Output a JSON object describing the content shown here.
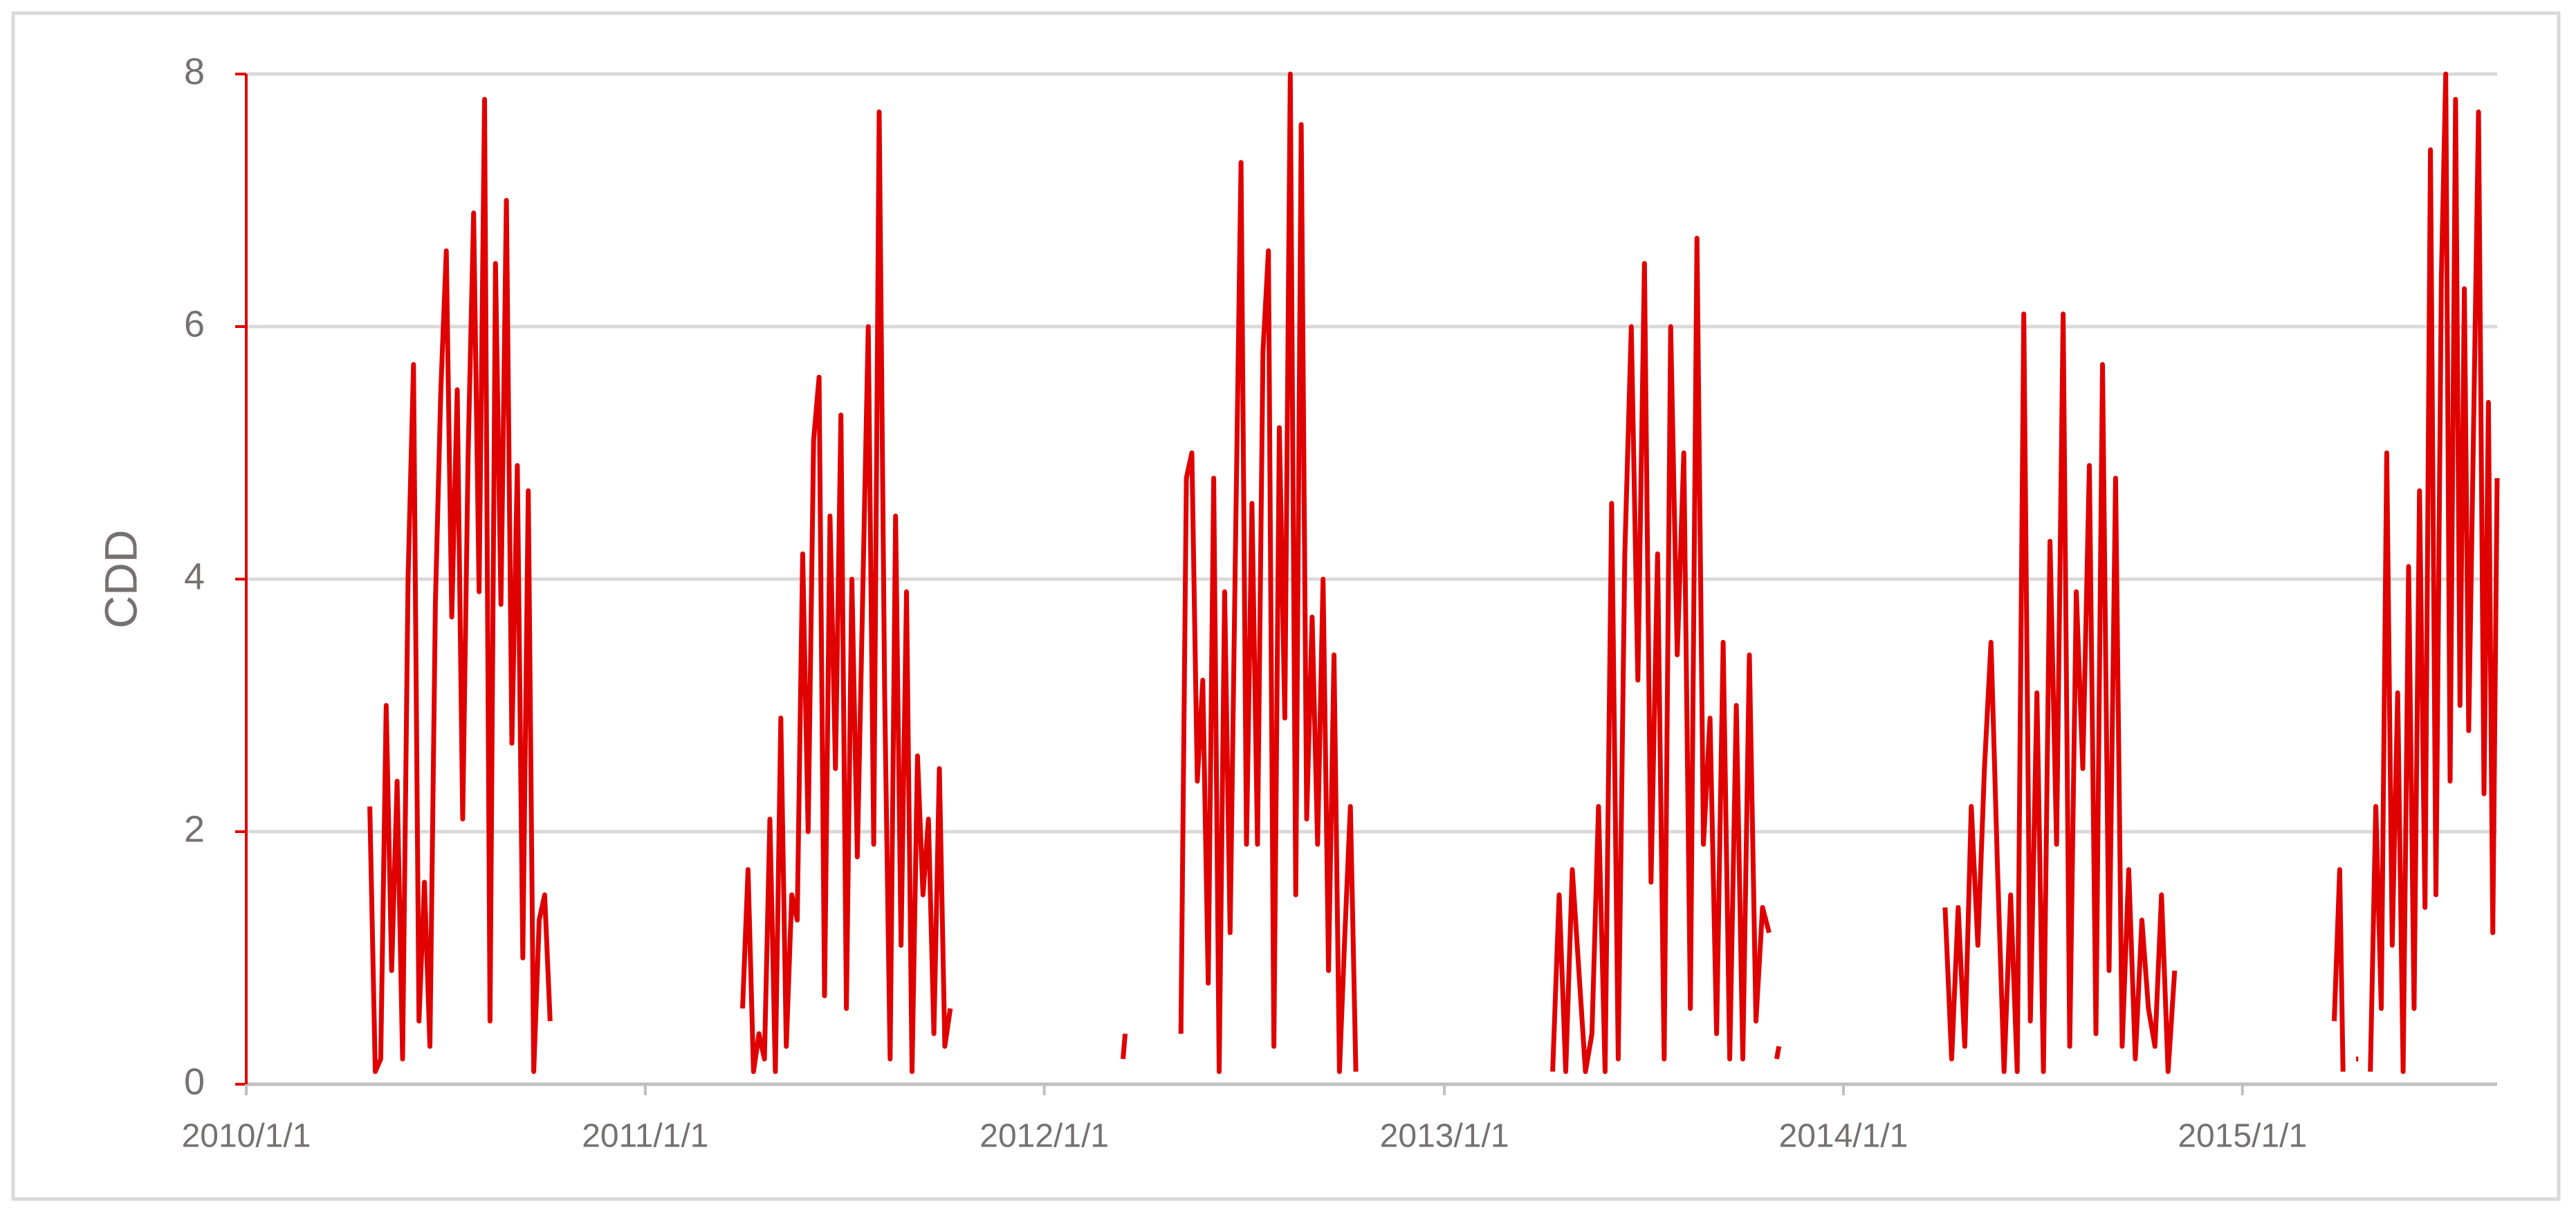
{
  "chart_data": {
    "type": "line",
    "ylabel": "CDD",
    "color": "#e00000",
    "grid": true,
    "xlim": [
      "2010/1/1",
      "2015/8/22"
    ],
    "xticks": [
      "2010/1/1",
      "2011/1/1",
      "2012/1/1",
      "2013/1/1",
      "2014/1/1",
      "2015/1/1"
    ],
    "ylim": [
      0,
      8
    ],
    "yticks": [
      0,
      2,
      4,
      6,
      8
    ],
    "x": [
      "2010/4/24",
      "2010/4/29",
      "2010/5/4",
      "2010/5/9",
      "2010/5/14",
      "2010/5/19",
      "2010/5/24",
      "2010/5/29",
      "2010/6/3",
      "2010/6/8",
      "2010/6/13",
      "2010/6/18",
      "2010/6/23",
      "2010/6/28",
      "2010/7/3",
      "2010/7/8",
      "2010/7/13",
      "2010/7/18",
      "2010/7/23",
      "2010/7/28",
      "2010/8/2",
      "2010/8/7",
      "2010/8/12",
      "2010/8/17",
      "2010/8/22",
      "2010/8/27",
      "2010/9/1",
      "2010/9/6",
      "2010/9/11",
      "2010/9/16",
      "2010/9/21",
      "2010/9/26",
      "2010/10/1",
      "2010/10/6",
      "2011/1/1",
      "2011/3/31",
      "2011/4/5",
      "2011/4/10",
      "2011/4/15",
      "2011/4/20",
      "2011/4/25",
      "2011/4/30",
      "2011/5/5",
      "2011/5/10",
      "2011/5/15",
      "2011/5/20",
      "2011/5/25",
      "2011/5/30",
      "2011/6/4",
      "2011/6/9",
      "2011/6/14",
      "2011/6/19",
      "2011/6/24",
      "2011/6/29",
      "2011/7/4",
      "2011/7/9",
      "2011/7/14",
      "2011/7/19",
      "2011/7/24",
      "2011/7/29",
      "2011/8/3",
      "2011/8/8",
      "2011/8/13",
      "2011/8/18",
      "2011/8/23",
      "2011/8/28",
      "2011/9/2",
      "2011/9/7",
      "2011/9/12",
      "2011/9/17",
      "2011/9/22",
      "2011/9/27",
      "2011/10/2",
      "2011/10/7",
      "2012/1/1",
      "2012/3/13",
      "2012/3/15",
      "2012/4/1",
      "2012/5/5",
      "2012/5/10",
      "2012/5/15",
      "2012/5/20",
      "2012/5/25",
      "2012/5/30",
      "2012/6/4",
      "2012/6/9",
      "2012/6/14",
      "2012/6/19",
      "2012/6/24",
      "2012/6/29",
      "2012/7/4",
      "2012/7/9",
      "2012/7/14",
      "2012/7/19",
      "2012/7/24",
      "2012/7/29",
      "2012/8/3",
      "2012/8/8",
      "2012/8/13",
      "2012/8/18",
      "2012/8/23",
      "2012/8/28",
      "2012/9/2",
      "2012/9/7",
      "2012/9/12",
      "2012/9/17",
      "2012/9/22",
      "2012/9/27",
      "2012/10/2",
      "2012/10/7",
      "2012/10/12",
      "2013/1/1",
      "2013/4/10",
      "2013/4/16",
      "2013/4/22",
      "2013/4/28",
      "2013/5/4",
      "2013/5/10",
      "2013/5/16",
      "2013/5/22",
      "2013/5/28",
      "2013/6/3",
      "2013/6/9",
      "2013/6/15",
      "2013/6/21",
      "2013/6/27",
      "2013/7/3",
      "2013/7/9",
      "2013/7/15",
      "2013/7/21",
      "2013/7/27",
      "2013/8/2",
      "2013/8/8",
      "2013/8/14",
      "2013/8/20",
      "2013/8/26",
      "2013/9/1",
      "2013/9/7",
      "2013/9/13",
      "2013/9/19",
      "2013/9/25",
      "2013/10/1",
      "2013/10/7",
      "2013/10/13",
      "2013/10/19",
      "2013/10/25",
      "2013/10/28",
      "2013/11/1",
      "2013/11/3",
      "2014/1/1",
      "2014/4/4",
      "2014/4/10",
      "2014/4/16",
      "2014/4/22",
      "2014/4/28",
      "2014/5/4",
      "2014/5/10",
      "2014/5/16",
      "2014/5/22",
      "2014/5/28",
      "2014/6/3",
      "2014/6/9",
      "2014/6/15",
      "2014/6/21",
      "2014/6/27",
      "2014/7/3",
      "2014/7/9",
      "2014/7/15",
      "2014/7/21",
      "2014/7/27",
      "2014/8/2",
      "2014/8/8",
      "2014/8/14",
      "2014/8/20",
      "2014/8/26",
      "2014/9/1",
      "2014/9/7",
      "2014/9/13",
      "2014/9/19",
      "2014/9/25",
      "2014/10/1",
      "2014/10/7",
      "2014/10/13",
      "2014/10/19",
      "2014/10/25",
      "2014/10/31",
      "2015/1/1",
      "2015/3/26",
      "2015/3/31",
      "2015/4/3",
      "2015/4/10",
      "2015/4/15",
      "2015/4/17",
      "2015/4/22",
      "2015/4/28",
      "2015/5/3",
      "2015/5/8",
      "2015/5/13",
      "2015/5/18",
      "2015/5/23",
      "2015/5/28",
      "2015/6/2",
      "2015/6/7",
      "2015/6/12",
      "2015/6/17",
      "2015/6/22",
      "2015/6/27",
      "2015/7/2",
      "2015/7/6",
      "2015/7/10",
      "2015/7/15",
      "2015/7/19",
      "2015/7/23",
      "2015/7/27",
      "2015/8/1",
      "2015/8/5",
      "2015/8/10",
      "2015/8/14",
      "2015/8/18",
      "2015/8/22"
    ],
    "values": [
      2.2,
      0.1,
      0.2,
      3.0,
      0.9,
      2.4,
      0.2,
      4.0,
      5.7,
      0.5,
      1.6,
      0.3,
      3.8,
      5.5,
      6.6,
      3.7,
      5.5,
      2.1,
      5.0,
      6.9,
      3.9,
      7.8,
      0.5,
      6.5,
      3.8,
      7.0,
      2.7,
      4.9,
      1.0,
      4.7,
      0.1,
      1.3,
      1.5,
      0.5,
      null,
      0.6,
      1.7,
      0.1,
      0.4,
      0.2,
      2.1,
      0.1,
      2.9,
      0.3,
      1.5,
      1.3,
      4.2,
      2.0,
      5.1,
      5.6,
      0.7,
      4.5,
      2.5,
      5.3,
      0.6,
      4.0,
      1.8,
      3.9,
      6.0,
      1.9,
      7.7,
      3.1,
      0.2,
      4.5,
      1.1,
      3.9,
      0.1,
      2.6,
      1.5,
      2.1,
      0.4,
      2.5,
      0.3,
      0.6,
      null,
      0.2,
      0.4,
      null,
      0.4,
      4.8,
      5.0,
      2.4,
      3.2,
      0.8,
      4.8,
      0.1,
      3.9,
      1.2,
      4.3,
      7.3,
      1.9,
      4.6,
      1.9,
      5.8,
      6.6,
      0.3,
      5.2,
      2.9,
      8.0,
      1.5,
      7.6,
      2.1,
      3.7,
      1.9,
      4.0,
      0.9,
      3.4,
      0.1,
      1.2,
      2.2,
      0.1,
      null,
      0.1,
      1.5,
      0.1,
      1.7,
      0.9,
      0.1,
      0.4,
      2.2,
      0.1,
      4.6,
      0.2,
      4.2,
      6.0,
      3.2,
      6.5,
      1.6,
      4.2,
      0.2,
      6.0,
      3.4,
      5.0,
      0.6,
      6.7,
      1.9,
      2.9,
      0.4,
      3.5,
      0.2,
      3.0,
      0.2,
      3.4,
      0.5,
      1.4,
      1.2,
      null,
      0.2,
      0.3,
      null,
      1.4,
      0.2,
      1.4,
      0.3,
      2.2,
      1.1,
      2.5,
      3.5,
      1.7,
      0.1,
      1.5,
      0.1,
      6.1,
      0.5,
      3.1,
      0.1,
      4.3,
      1.9,
      6.1,
      0.3,
      3.9,
      2.5,
      4.9,
      0.4,
      5.7,
      0.9,
      4.8,
      0.3,
      1.7,
      0.2,
      1.3,
      0.6,
      0.3,
      1.5,
      0.1,
      0.9,
      null,
      0.5,
      1.7,
      0.1,
      null,
      0.2,
      0.2,
      null,
      0.1,
      2.2,
      0.6,
      5.0,
      1.1,
      3.1,
      0.1,
      4.1,
      0.6,
      4.7,
      1.4,
      7.4,
      1.5,
      6.4,
      8.0,
      2.4,
      7.8,
      3.0,
      6.3,
      2.8,
      5.5,
      7.7,
      2.3,
      5.4,
      1.2,
      4.8
    ]
  }
}
